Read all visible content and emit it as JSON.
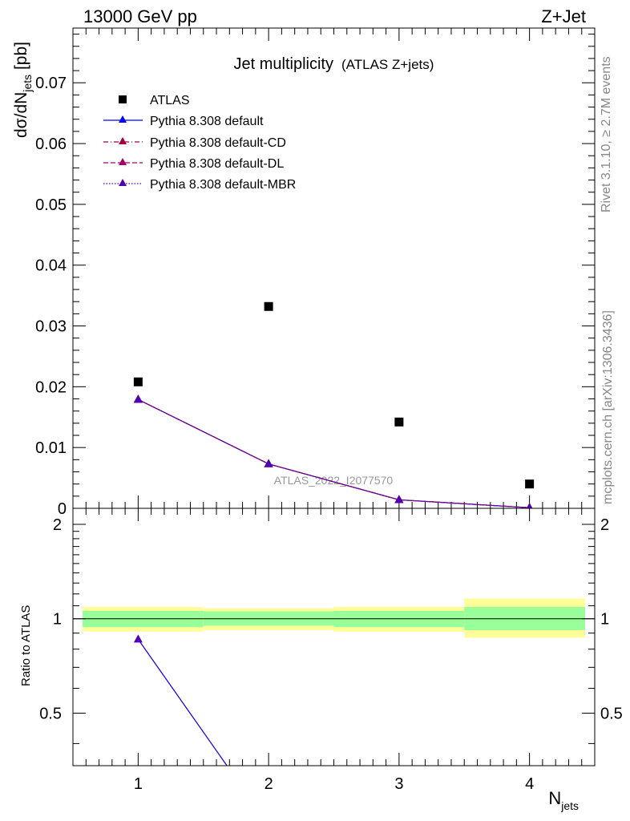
{
  "header": {
    "left": "13000 GeV pp",
    "right": "Z+Jet"
  },
  "side": {
    "rivet": "Rivet 3.1.10, ≥ 2.7M events",
    "mcplots": "mcplots.cern.ch [arXiv:1306.3436]"
  },
  "chart_data": [
    {
      "type": "scatter",
      "title": "Jet multiplicity",
      "subtitle": "(ATLAS Z+jets)",
      "watermark": "ATLAS_2022_I2077570",
      "ylabel_main": "dσ/dN",
      "ylabel_sub": "jets",
      "ylabel_unit": " [pb]",
      "xlim": [
        0.5,
        4.5
      ],
      "ylim": [
        0,
        0.079
      ],
      "x_ticks": [
        1,
        2,
        3,
        4
      ],
      "y_ticks": [
        0,
        0.01,
        0.02,
        0.03,
        0.04,
        0.05,
        0.06,
        0.07
      ],
      "y_tick_labels": [
        "0",
        "0.01",
        "0.02",
        "0.03",
        "0.04",
        "0.05",
        "0.06",
        "0.07"
      ],
      "legend_position": "top-left",
      "series": [
        {
          "name": "ATLAS",
          "style": "marker-square",
          "color": "#000000",
          "x": [
            1,
            2,
            3,
            4
          ],
          "y": [
            0.0208,
            0.0332,
            0.0142,
            0.004
          ]
        },
        {
          "name": "Pythia 8.308 default",
          "style": "solid",
          "color": "#0000ff",
          "x": [
            1,
            2,
            3,
            4
          ],
          "y": [
            0.0179,
            0.0073,
            0.0014,
            0.0001
          ]
        },
        {
          "name": "Pythia 8.308 default-CD",
          "style": "dashdot",
          "color": "#a0003c",
          "x": [
            1,
            2,
            3,
            4
          ],
          "y": [
            0.0179,
            0.0073,
            0.0014,
            0.0001
          ]
        },
        {
          "name": "Pythia 8.308 default-DL",
          "style": "dashed",
          "color": "#a0006a",
          "x": [
            1,
            2,
            3,
            4
          ],
          "y": [
            0.0179,
            0.0073,
            0.0014,
            0.0001
          ]
        },
        {
          "name": "Pythia 8.308 default-MBR",
          "style": "dotted",
          "color": "#5000b4",
          "x": [
            1,
            2,
            3,
            4
          ],
          "y": [
            0.0179,
            0.0073,
            0.0014,
            0.0001
          ]
        }
      ]
    },
    {
      "type": "line",
      "ylabel": "Ratio to ATLAS",
      "xlabel_main": "N",
      "xlabel_sub": "jets",
      "xlim": [
        0.5,
        4.5
      ],
      "ylim": [
        0.34,
        2.25
      ],
      "x_ticks": [
        1,
        2,
        3,
        4
      ],
      "x_tick_labels": [
        "1",
        "2",
        "3",
        "4"
      ],
      "y_ticks": [
        0.5,
        1,
        2
      ],
      "y_tick_labels": [
        "0.5",
        "1",
        "2"
      ],
      "uncertainty_bands": [
        {
          "x_low": 0.5,
          "x_high": 1.5,
          "inner": [
            0.94,
            1.06
          ],
          "outer": [
            0.91,
            1.09
          ]
        },
        {
          "x_low": 1.5,
          "x_high": 2.5,
          "inner": [
            0.95,
            1.055
          ],
          "outer": [
            0.92,
            1.08
          ]
        },
        {
          "x_low": 2.5,
          "x_high": 3.5,
          "inner": [
            0.94,
            1.06
          ],
          "outer": [
            0.91,
            1.09
          ]
        },
        {
          "x_low": 3.5,
          "x_high": 4.5,
          "inner": [
            0.92,
            1.09
          ],
          "outer": [
            0.87,
            1.16
          ]
        }
      ],
      "band_colors": {
        "inner": "#99ff99",
        "outer": "#ffff99"
      },
      "ratio_series": {
        "color": "#5000b4",
        "x": [
          1,
          2
        ],
        "y": [
          0.86,
          0.22
        ]
      }
    }
  ]
}
